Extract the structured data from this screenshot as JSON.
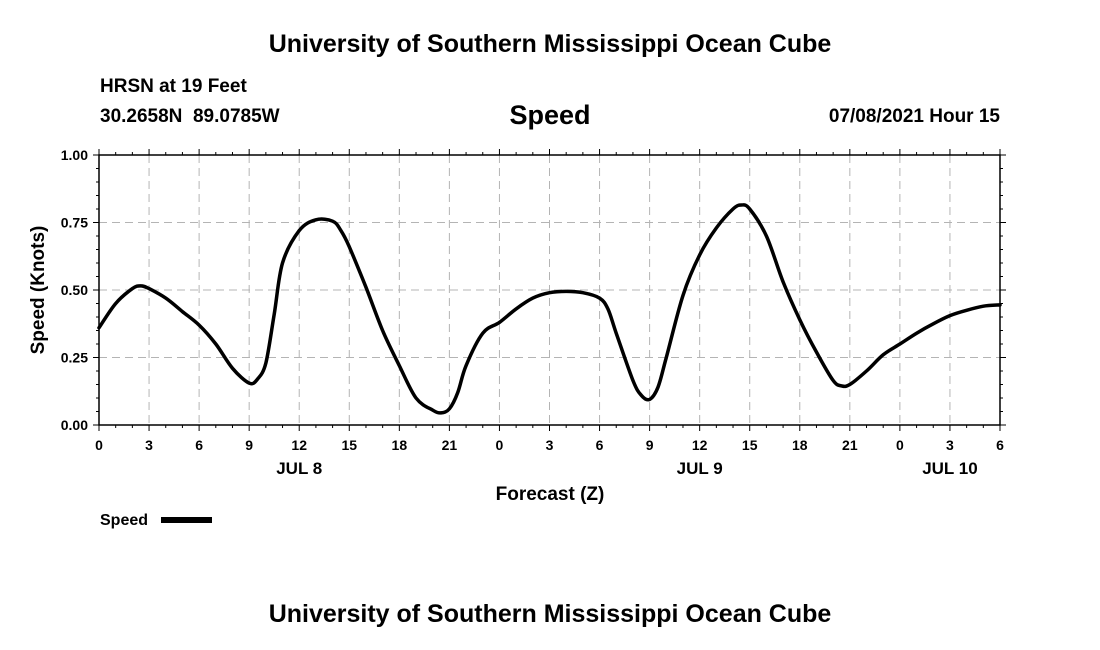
{
  "page": {
    "top_title": "University of Southern Mississippi Ocean Cube",
    "bottom_title": "University of Southern Mississippi Ocean Cube",
    "station": "HRSN at 19 Feet",
    "coordinates": "30.2658N  89.0785W",
    "variable": "Speed",
    "datetime": "07/08/2021 Hour 15"
  },
  "chart_data": {
    "type": "line",
    "title": "Speed",
    "xlabel": "Forecast (Z)",
    "ylabel": "Speed (Knots)",
    "xlim": [
      0,
      54
    ],
    "ylim": [
      0,
      1.0
    ],
    "yticks": [
      0.0,
      0.25,
      0.5,
      0.75,
      1.0
    ],
    "ytick_labels": [
      "0.00",
      "0.25",
      "0.50",
      "0.75",
      "1.00"
    ],
    "xticks": [
      0,
      3,
      6,
      9,
      12,
      15,
      18,
      21,
      24,
      27,
      30,
      33,
      36,
      39,
      42,
      45,
      48,
      51,
      54
    ],
    "xtick_labels": [
      "0",
      "3",
      "6",
      "9",
      "12",
      "15",
      "18",
      "21",
      "0",
      "3",
      "6",
      "9",
      "12",
      "15",
      "18",
      "21",
      "0",
      "3",
      "6"
    ],
    "date_labels": [
      {
        "x": 12,
        "label": "JUL 8"
      },
      {
        "x": 36,
        "label": "JUL 9"
      },
      {
        "x": 51,
        "label": "JUL 10"
      }
    ],
    "grid": true,
    "line_color": "#000000",
    "grid_color": "#b4b4b4",
    "series": [
      {
        "name": "Speed",
        "x": [
          0,
          1,
          2,
          2.5,
          3,
          4,
          5,
          6,
          7,
          8,
          9,
          9.5,
          10,
          10.5,
          11,
          12,
          13,
          14,
          14.5,
          15,
          16,
          17,
          18,
          19,
          20,
          20.5,
          21,
          21.5,
          22,
          23,
          24,
          25,
          26,
          27,
          28,
          29,
          30,
          30.5,
          31,
          32,
          32.5,
          33,
          33.5,
          34,
          35,
          36,
          37,
          38,
          38.5,
          39,
          40,
          41,
          42,
          43,
          44,
          44.5,
          45,
          46,
          47,
          48,
          49,
          50,
          51,
          52,
          53,
          54
        ],
        "y": [
          0.36,
          0.45,
          0.505,
          0.515,
          0.505,
          0.47,
          0.42,
          0.37,
          0.3,
          0.21,
          0.155,
          0.17,
          0.23,
          0.41,
          0.6,
          0.72,
          0.76,
          0.755,
          0.72,
          0.66,
          0.51,
          0.35,
          0.22,
          0.1,
          0.055,
          0.045,
          0.06,
          0.12,
          0.22,
          0.34,
          0.38,
          0.43,
          0.47,
          0.49,
          0.495,
          0.49,
          0.47,
          0.43,
          0.34,
          0.165,
          0.11,
          0.095,
          0.14,
          0.25,
          0.48,
          0.63,
          0.73,
          0.8,
          0.815,
          0.8,
          0.7,
          0.53,
          0.39,
          0.27,
          0.165,
          0.145,
          0.15,
          0.2,
          0.26,
          0.3,
          0.34,
          0.375,
          0.405,
          0.425,
          0.44,
          0.445
        ]
      }
    ],
    "legend": {
      "label": "Speed",
      "position": "bottom-left"
    }
  }
}
